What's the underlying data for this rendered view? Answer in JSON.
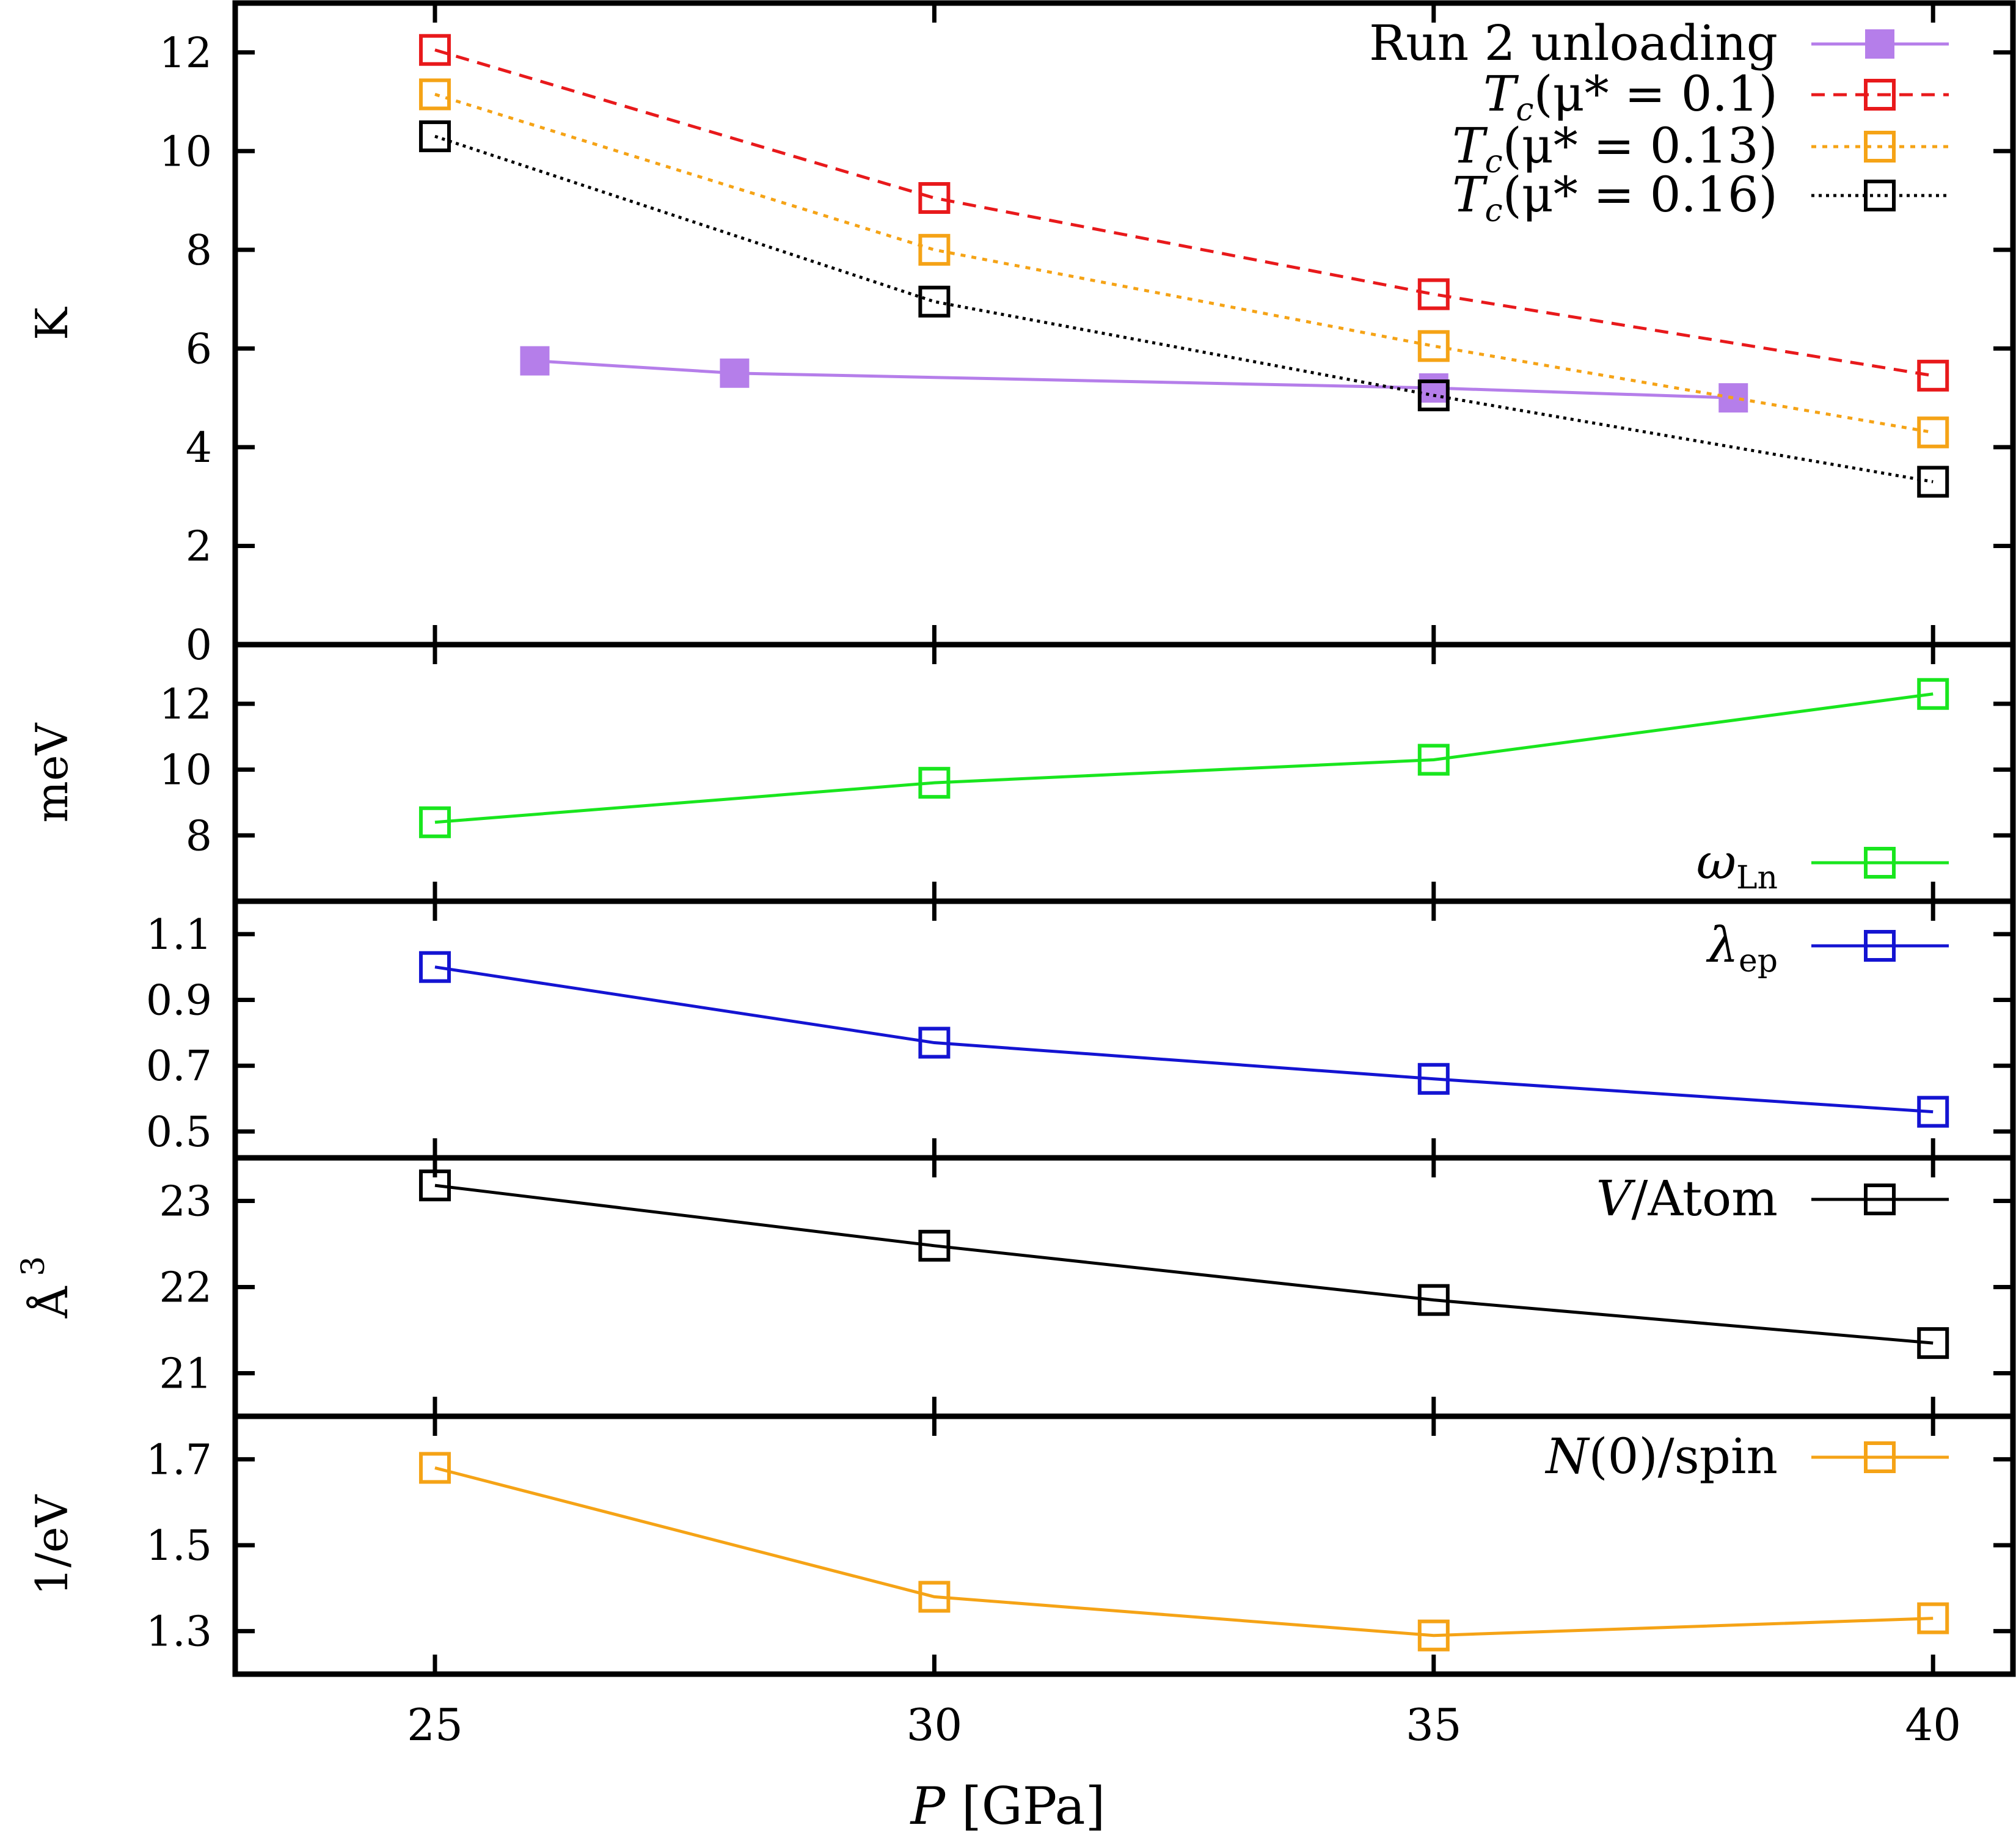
{
  "chart_data": [
    {
      "type": "line",
      "id": "tc",
      "ylabel": "K",
      "ylim": [
        0,
        13
      ],
      "yticks": [
        0,
        2,
        4,
        6,
        8,
        10,
        12
      ],
      "series": [
        {
          "name": "Run 2 unloading",
          "legend_label": "Run 2 unloading",
          "color": "#B57EEA",
          "marker": "filled-square",
          "dash": "solid",
          "x": [
            26,
            28,
            35,
            38
          ],
          "values": [
            5.75,
            5.5,
            5.2,
            5.0
          ]
        },
        {
          "name": "Tc mu*=0.1",
          "legend_label": "T",
          "legend_sub": "c",
          "legend_rest": "(μ* = 0.1)",
          "color": "#E8191B",
          "marker": "open-square",
          "dash": "dashed",
          "x": [
            25,
            30,
            35,
            40
          ],
          "values": [
            12.05,
            9.05,
            7.1,
            5.45
          ]
        },
        {
          "name": "Tc mu*=0.13",
          "legend_label": "T",
          "legend_sub": "c",
          "legend_rest": "(μ* = 0.13)",
          "color": "#F5A316",
          "marker": "open-square",
          "dash": "dotted",
          "x": [
            25,
            30,
            35,
            40
          ],
          "values": [
            11.15,
            8.0,
            6.05,
            4.3
          ]
        },
        {
          "name": "Tc mu*=0.16",
          "legend_label": "T",
          "legend_sub": "c",
          "legend_rest": "(μ* = 0.16)",
          "color": "#000000",
          "marker": "open-square",
          "dash": "dotted-fine",
          "x": [
            25,
            30,
            35,
            40
          ],
          "values": [
            10.3,
            6.95,
            5.05,
            3.3
          ]
        }
      ]
    },
    {
      "type": "line",
      "id": "omega",
      "ylabel": "meV",
      "ylim": [
        6,
        13.8
      ],
      "yticks": [
        8,
        10,
        12
      ],
      "legend_position": "bottom-right",
      "series": [
        {
          "name": "omega_Ln",
          "legend_label": "ω",
          "legend_sub": "Ln",
          "legend_rest": "",
          "color": "#19E61E",
          "marker": "open-square",
          "dash": "solid",
          "x": [
            25,
            30,
            35,
            40
          ],
          "values": [
            8.4,
            9.6,
            10.3,
            12.3
          ]
        }
      ]
    },
    {
      "type": "line",
      "id": "lambda",
      "ylabel": "",
      "ylim": [
        0.42,
        1.2
      ],
      "yticks": [
        0.5,
        0.7,
        0.9,
        1.1
      ],
      "series": [
        {
          "name": "lambda_ep",
          "legend_label": "λ",
          "legend_sub": "ep",
          "legend_rest": "",
          "color": "#1414D2",
          "marker": "open-square",
          "dash": "solid",
          "x": [
            25,
            30,
            35,
            40
          ],
          "values": [
            1.0,
            0.77,
            0.66,
            0.56
          ]
        }
      ]
    },
    {
      "type": "line",
      "id": "volume",
      "ylabel": "Å",
      "ylabel_sup": "3",
      "ylim": [
        20.5,
        23.5
      ],
      "yticks": [
        21,
        22,
        23
      ],
      "series": [
        {
          "name": "V/Atom",
          "legend_label": "V",
          "legend_sub": "",
          "legend_rest": "/Atom",
          "color": "#000000",
          "marker": "open-square",
          "dash": "solid",
          "x": [
            25,
            30,
            35,
            40
          ],
          "values": [
            23.18,
            22.48,
            21.85,
            21.35
          ]
        }
      ]
    },
    {
      "type": "line",
      "id": "dos",
      "ylabel": "1/eV",
      "ylim": [
        1.2,
        1.8
      ],
      "yticks": [
        1.3,
        1.5,
        1.7
      ],
      "series": [
        {
          "name": "N(0)/spin",
          "legend_label": "N",
          "legend_sub": "",
          "legend_rest": "(0)/spin",
          "color": "#F5A316",
          "marker": "open-square",
          "dash": "solid",
          "x": [
            25,
            30,
            35,
            40
          ],
          "values": [
            1.68,
            1.38,
            1.29,
            1.33
          ]
        }
      ]
    }
  ],
  "xaxis": {
    "label_italic": "P",
    "label_rest": " [GPa]",
    "xlim": [
      23,
      40.8
    ],
    "ticks": [
      25,
      30,
      35,
      40
    ]
  }
}
